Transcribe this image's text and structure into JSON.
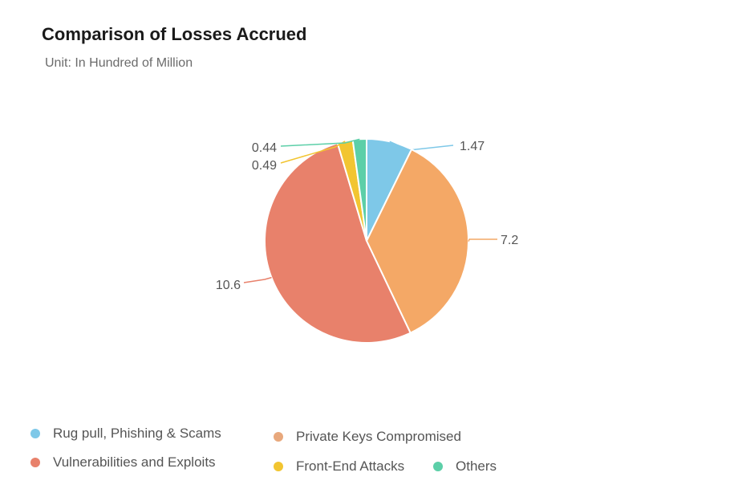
{
  "title": "Comparison of Losses Accrued",
  "subtitle": "Unit: In Hundred of Million",
  "chart_data": {
    "type": "pie",
    "title": "Comparison of Losses Accrued",
    "subtitle": "Unit: In Hundred of Million",
    "start_angle_deg": 0,
    "direction": "clockwise",
    "slices": [
      {
        "name": "Rug pull, Phishing & Scams",
        "value": 1.47,
        "label": "1.47",
        "color": "#7ec8e8"
      },
      {
        "name": "Private Keys Compromised",
        "value": 7.2,
        "label": "7.2",
        "color": "#f4a866"
      },
      {
        "name": "Vulnerabilities and Exploits",
        "value": 10.6,
        "label": "10.6",
        "color": "#e8816b"
      },
      {
        "name": "Front-End Attacks",
        "value": 0.49,
        "label": "0.49",
        "color": "#f2c531"
      },
      {
        "name": "Others",
        "value": 0.44,
        "label": "0.44",
        "color": "#5ccfa8"
      }
    ],
    "legend_position": "bottom-left"
  },
  "legend": {
    "items": [
      {
        "label": "Rug pull, Phishing & Scams",
        "color": "#7ec8e8"
      },
      {
        "label": "Private Keys Compromised",
        "color": "#e8a87c"
      },
      {
        "label": "Vulnerabilities and Exploits",
        "color": "#e8816b"
      },
      {
        "label": "Front-End Attacks",
        "color": "#f2c531"
      },
      {
        "label": "Others",
        "color": "#5ccfa8"
      }
    ]
  }
}
